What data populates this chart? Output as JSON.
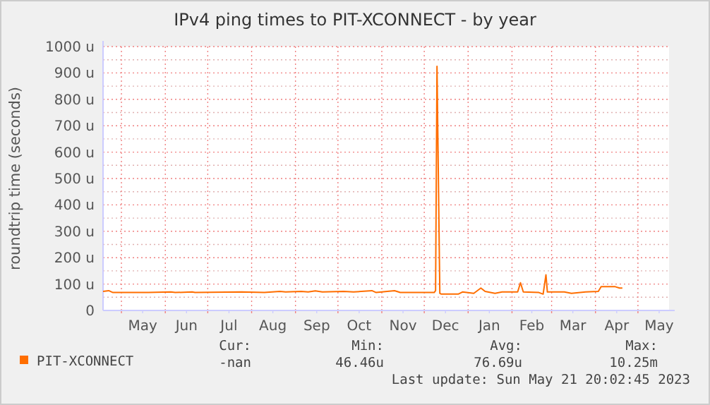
{
  "chart_data": {
    "type": "line",
    "title": "IPv4 ping times to PIT-XCONNECT - by year",
    "ylabel": "roundtrip time (seconds)",
    "xlim": [
      "2022-04-18",
      "2023-05-23"
    ],
    "xticks": [
      {
        "value": "2022-05-01",
        "label": null
      },
      {
        "value": "2022-05-16",
        "label": "May"
      },
      {
        "value": "2022-06-01",
        "label": null
      },
      {
        "value": "2022-06-16",
        "label": "Jun"
      },
      {
        "value": "2022-07-01",
        "label": null
      },
      {
        "value": "2022-07-16",
        "label": "Jul"
      },
      {
        "value": "2022-08-01",
        "label": null
      },
      {
        "value": "2022-08-16",
        "label": "Aug"
      },
      {
        "value": "2022-09-01",
        "label": null
      },
      {
        "value": "2022-09-16",
        "label": "Sep"
      },
      {
        "value": "2022-10-01",
        "label": null
      },
      {
        "value": "2022-10-16",
        "label": "Oct"
      },
      {
        "value": "2022-11-01",
        "label": null
      },
      {
        "value": "2022-11-16",
        "label": "Nov"
      },
      {
        "value": "2022-12-01",
        "label": null
      },
      {
        "value": "2022-12-16",
        "label": "Dec"
      },
      {
        "value": "2023-01-01",
        "label": null
      },
      {
        "value": "2023-01-16",
        "label": "Jan"
      },
      {
        "value": "2023-02-01",
        "label": null
      },
      {
        "value": "2023-02-15",
        "label": "Feb"
      },
      {
        "value": "2023-03-01",
        "label": null
      },
      {
        "value": "2023-03-16",
        "label": "Mar"
      },
      {
        "value": "2023-04-01",
        "label": null
      },
      {
        "value": "2023-04-16",
        "label": "Apr"
      },
      {
        "value": "2023-05-01",
        "label": null
      },
      {
        "value": "2023-05-16",
        "label": "May"
      }
    ],
    "ylim": [
      0,
      1000
    ],
    "yticks": [
      {
        "value": 0,
        "label": "0"
      },
      {
        "value": 50,
        "label": null
      },
      {
        "value": 100,
        "label": "100 u"
      },
      {
        "value": 150,
        "label": null
      },
      {
        "value": 200,
        "label": "200 u"
      },
      {
        "value": 250,
        "label": null
      },
      {
        "value": 300,
        "label": "300 u"
      },
      {
        "value": 350,
        "label": null
      },
      {
        "value": 400,
        "label": "400 u"
      },
      {
        "value": 450,
        "label": null
      },
      {
        "value": 500,
        "label": "500 u"
      },
      {
        "value": 550,
        "label": null
      },
      {
        "value": 600,
        "label": "600 u"
      },
      {
        "value": 650,
        "label": null
      },
      {
        "value": 700,
        "label": "700 u"
      },
      {
        "value": 750,
        "label": null
      },
      {
        "value": 800,
        "label": "800 u"
      },
      {
        "value": 850,
        "label": null
      },
      {
        "value": 900,
        "label": "900 u"
      },
      {
        "value": 950,
        "label": null
      },
      {
        "value": 1000,
        "label": "1000 u"
      }
    ],
    "grid": true,
    "legend": "bottom left",
    "x": [
      "2022-04-18",
      "2022-04-22",
      "2022-04-25",
      "2022-05-20",
      "2022-06-05",
      "2022-06-08",
      "2022-06-20",
      "2022-06-22",
      "2022-07-25",
      "2022-08-10",
      "2022-08-21",
      "2022-08-25",
      "2022-09-05",
      "2022-09-10",
      "2022-09-15",
      "2022-09-20",
      "2022-10-05",
      "2022-10-12",
      "2022-10-25",
      "2022-10-28",
      "2022-11-10",
      "2022-11-14",
      "2022-12-08",
      "2022-12-09",
      "2022-12-10",
      "2022-12-12",
      "2022-12-13",
      "2022-12-25",
      "2022-12-28",
      "2023-01-05",
      "2023-01-10",
      "2023-01-13",
      "2023-01-20",
      "2023-01-25",
      "2023-02-05",
      "2023-02-07",
      "2023-02-09",
      "2023-02-20",
      "2023-02-23",
      "2023-02-25",
      "2023-02-26",
      "2023-03-10",
      "2023-03-15",
      "2023-03-25",
      "2023-04-03",
      "2023-04-05",
      "2023-04-15",
      "2023-04-18",
      "2023-04-20"
    ],
    "series": [
      {
        "name": "PIT-XCONNECT",
        "color": "#ff6e00",
        "values": [
          72,
          75,
          68,
          68,
          70,
          68,
          70,
          68,
          70,
          68,
          72,
          70,
          72,
          70,
          74,
          70,
          72,
          70,
          75,
          68,
          75,
          68,
          68,
          75,
          925,
          65,
          62,
          62,
          70,
          65,
          85,
          72,
          65,
          70,
          70,
          105,
          70,
          68,
          62,
          135,
          70,
          70,
          65,
          70,
          72,
          90,
          90,
          85,
          85
        ]
      }
    ],
    "annotations": [
      "Cur:",
      "Min:",
      "Avg:",
      "Max:",
      "-nan",
      "46.46u",
      "76.69u",
      "10.25m",
      "Last update: Sun May 21 20:02:45 2023"
    ]
  }
}
